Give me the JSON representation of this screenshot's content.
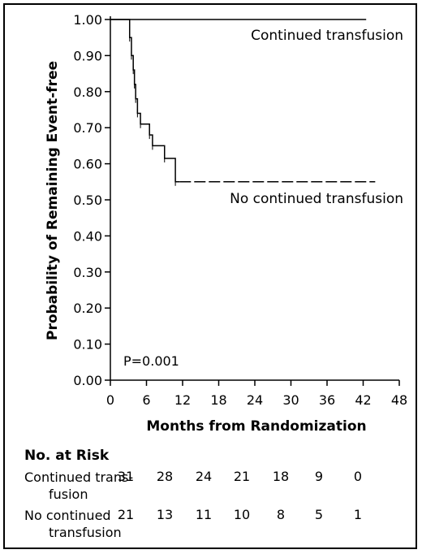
{
  "chart_data": {
    "type": "line",
    "xlabel": "Months from Randomization",
    "ylabel": "Probability of Remaining Event-free",
    "xlim": [
      0,
      48
    ],
    "ylim": [
      0,
      1
    ],
    "x_ticks": [
      "0",
      "6",
      "12",
      "18",
      "24",
      "30",
      "36",
      "42",
      "48"
    ],
    "y_ticks": [
      "0.00",
      "0.10",
      "0.20",
      "0.30",
      "0.40",
      "0.50",
      "0.60",
      "0.70",
      "0.80",
      "0.90",
      "1.00"
    ],
    "annotation": "P=0.001",
    "series": [
      {
        "name": "Continued transfusion",
        "style": "solid",
        "x": [
          0,
          42.5
        ],
        "y": [
          1.0,
          1.0
        ]
      },
      {
        "name": "No continued transfusion",
        "style": "step",
        "x": [
          0,
          3.2,
          3.5,
          3.8,
          4.0,
          4.2,
          4.5,
          5.0,
          6.5,
          7.0,
          9.0,
          10.8,
          44.0
        ],
        "y": [
          1.0,
          0.95,
          0.9,
          0.86,
          0.82,
          0.78,
          0.74,
          0.71,
          0.68,
          0.65,
          0.615,
          0.55,
          0.55
        ],
        "dashed_from": 11.5
      }
    ]
  },
  "risk_table": {
    "title": "No. at Risk",
    "rows": [
      {
        "label_line1": "Continued trans-",
        "label_line2": "fusion",
        "values": [
          "31",
          "28",
          "24",
          "21",
          "18",
          "9",
          "0"
        ]
      },
      {
        "label_line1": "No continued",
        "label_line2": "transfusion",
        "values": [
          "21",
          "13",
          "11",
          "10",
          "8",
          "5",
          "1"
        ]
      }
    ]
  }
}
